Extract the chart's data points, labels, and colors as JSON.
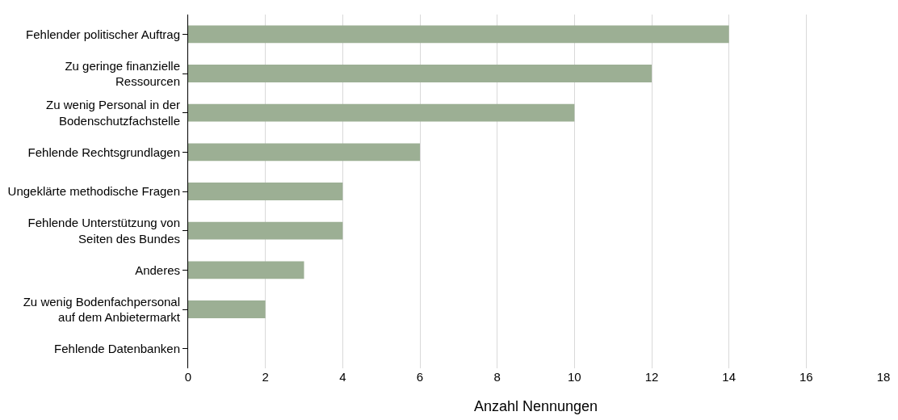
{
  "chart_data": {
    "type": "bar",
    "orientation": "horizontal",
    "categories": [
      "Fehlender politischer Auftrag",
      "Zu geringe finanzielle\nRessourcen",
      "Zu wenig Personal in der\nBodenschutzfachstelle",
      "Fehlende Rechtsgrundlagen",
      "Ungeklärte methodische Fragen",
      "Fehlende Unterstützung von\nSeiten des Bundes",
      "Anderes",
      "Zu wenig Bodenfachpersonal\nauf dem Anbietermarkt",
      "Fehlende Datenbanken"
    ],
    "values": [
      14,
      12,
      10,
      6,
      4,
      4,
      3,
      2,
      0
    ],
    "color": "#9caf94",
    "xlabel": "Anzahl Nennungen",
    "xlim": [
      0,
      18
    ],
    "xticks": [
      0,
      2,
      4,
      6,
      8,
      10,
      12,
      14,
      16,
      18
    ],
    "grid": "x",
    "legend": false
  }
}
